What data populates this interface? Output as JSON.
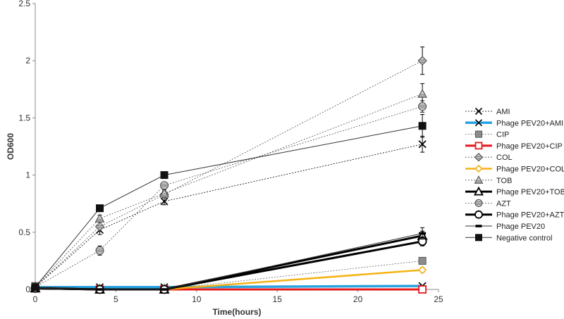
{
  "chart_data": {
    "type": "line",
    "title": "",
    "xlabel": "Time(hours)",
    "ylabel": "OD600",
    "xlim": [
      0,
      25
    ],
    "ylim": [
      0,
      2.5
    ],
    "xticks": [
      0,
      5,
      10,
      15,
      20,
      25
    ],
    "yticks": [
      0,
      0.5,
      1,
      1.5,
      2,
      2.5
    ],
    "ytick_labels": [
      "0",
      "0.5",
      "1",
      "1.5",
      "2",
      "2.5"
    ],
    "grid": false,
    "legend_position": "right",
    "x": [
      0,
      4,
      8,
      24
    ],
    "series": [
      {
        "name": "AMI",
        "values": [
          0.02,
          0.52,
          0.77,
          1.27
        ],
        "err": [
          0,
          0.04,
          0.03,
          0.07
        ],
        "color": "#000000",
        "dash": true,
        "width": 0.8,
        "marker": "x"
      },
      {
        "name": "Phage PEV20+AMI",
        "values": [
          0.02,
          0.02,
          0.02,
          0.03
        ],
        "err": [
          0,
          0,
          0,
          0
        ],
        "color": "#29a3e0",
        "dash": false,
        "width": 3.5,
        "marker": "x"
      },
      {
        "name": "CIP",
        "values": [
          0.03,
          0.0,
          0.0,
          0.25
        ],
        "err": [
          0,
          0,
          0,
          0.02
        ],
        "color": "#666666",
        "dash": true,
        "width": 0.8,
        "marker": "square-gray"
      },
      {
        "name": "Phage PEV20+CIP",
        "values": [
          0.01,
          0.0,
          0.0,
          0.0
        ],
        "err": [
          0,
          0,
          0,
          0
        ],
        "color": "#e8181c",
        "dash": false,
        "width": 3,
        "marker": "square-open-red"
      },
      {
        "name": "COL",
        "values": [
          0.02,
          0.55,
          0.83,
          2.0
        ],
        "err": [
          0,
          0.04,
          0.03,
          0.12
        ],
        "color": "#555555",
        "dash": true,
        "width": 0.8,
        "marker": "diamond"
      },
      {
        "name": "Phage PEV20+COL",
        "values": [
          0.01,
          0.0,
          0.0,
          0.17
        ],
        "err": [
          0,
          0,
          0,
          0.02
        ],
        "color": "#f5b214",
        "dash": false,
        "width": 2.5,
        "marker": "diamond-yellow"
      },
      {
        "name": "TOB",
        "values": [
          0.02,
          0.62,
          0.84,
          1.71
        ],
        "err": [
          0,
          0.03,
          0.03,
          0.09
        ],
        "color": "#555555",
        "dash": true,
        "width": 0.8,
        "marker": "triangle"
      },
      {
        "name": "Phage PEV20+TOB",
        "values": [
          0.01,
          0.0,
          0.0,
          0.47
        ],
        "err": [
          0,
          0,
          0,
          0.04
        ],
        "color": "#000000",
        "dash": false,
        "width": 3,
        "marker": "triangle-open"
      },
      {
        "name": "AZT",
        "values": [
          0.02,
          0.34,
          0.91,
          1.6
        ],
        "err": [
          0,
          0.04,
          0.03,
          0.05
        ],
        "color": "#555555",
        "dash": true,
        "width": 0.8,
        "marker": "circle-striped"
      },
      {
        "name": "Phage PEV20+AZT",
        "values": [
          0.01,
          0.0,
          0.0,
          0.42
        ],
        "err": [
          0,
          0,
          0,
          0.04
        ],
        "color": "#000000",
        "dash": false,
        "width": 3,
        "marker": "circle-open"
      },
      {
        "name": "Phage PEV20",
        "values": [
          0.01,
          0.0,
          0.0,
          0.49
        ],
        "err": [
          0,
          0,
          0,
          0.05
        ],
        "color": "#333333",
        "dash": false,
        "width": 1,
        "marker": "dash"
      },
      {
        "name": "Negative control",
        "values": [
          0.02,
          0.71,
          1.0,
          1.43
        ],
        "err": [
          0,
          0.02,
          0.02,
          0.1
        ],
        "color": "#333333",
        "dash": false,
        "width": 1,
        "marker": "square-black"
      }
    ]
  }
}
